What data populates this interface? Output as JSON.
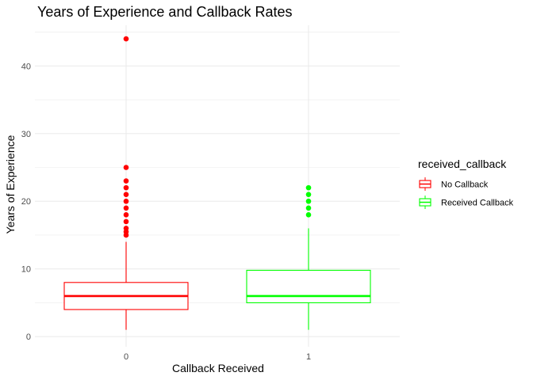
{
  "chart_data": {
    "type": "boxplot",
    "title": "Years of Experience and Callback Rates",
    "xlabel": "Callback Received",
    "ylabel": "Years of Experience",
    "categories": [
      "0",
      "1"
    ],
    "ylim": [
      -1.5,
      46
    ],
    "yticks": [
      0,
      10,
      20,
      30,
      40
    ],
    "grid": true,
    "legend": {
      "title": "received_callback",
      "placement": "right",
      "entries": [
        "No Callback",
        "Received Callback"
      ]
    },
    "series": [
      {
        "name": "No Callback",
        "category": "0",
        "color": "#ff0000",
        "min": 1,
        "q1": 4,
        "median": 6,
        "q3": 8,
        "max": 14,
        "outliers": [
          15,
          15.5,
          16,
          17,
          18,
          19,
          20,
          21,
          22,
          23,
          25,
          44
        ]
      },
      {
        "name": "Received Callback",
        "category": "1",
        "color": "#00ff00",
        "min": 1,
        "q1": 5,
        "median": 6,
        "q3": 9.8,
        "max": 16,
        "outliers": [
          18,
          19,
          20,
          21,
          22
        ]
      }
    ]
  }
}
